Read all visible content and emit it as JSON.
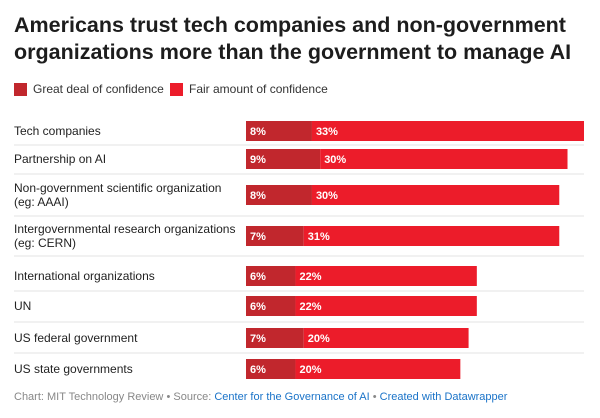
{
  "title": "Americans trust tech companies and non-government organizations more than the government to manage AI",
  "legend": [
    {
      "label": "Great deal of confidence",
      "color": "#c1272d"
    },
    {
      "label": "Fair amount of confidence",
      "color": "#ec1c2a"
    }
  ],
  "chart_data": {
    "type": "bar",
    "orientation": "horizontal",
    "stacked": true,
    "title": "Americans trust tech companies and non-government organizations more than the government to manage AI",
    "categories": [
      [
        "Tech companies"
      ],
      [
        "Partnership on AI"
      ],
      [
        "Non-government scientific organization",
        "(eg: AAAI)"
      ],
      [
        "Intergovernmental research organizations",
        "(eg: CERN)"
      ],
      [
        "International organizations"
      ],
      [
        "UN"
      ],
      [
        "US federal government"
      ],
      [
        "US state governments"
      ]
    ],
    "series": [
      {
        "name": "Great deal of confidence",
        "color": "#c1272d",
        "values": [
          8,
          9,
          8,
          7,
          6,
          6,
          7,
          6
        ],
        "value_labels": [
          "8%",
          "9%",
          "8%",
          "7%",
          "6%",
          "6%",
          "7%",
          "6%"
        ]
      },
      {
        "name": "Fair amount of confidence",
        "color": "#ec1c2a",
        "values": [
          33,
          30,
          30,
          31,
          22,
          22,
          20,
          20
        ],
        "value_labels": [
          "33%",
          "30%",
          "30%",
          "31%",
          "22%",
          "22%",
          "20%",
          "20%"
        ]
      }
    ],
    "xlim": [
      0,
      41
    ],
    "xlabel": "",
    "ylabel": "",
    "grid": false,
    "legend_position": "top-left"
  },
  "footer": {
    "chart_credit": "Chart: MIT Technology Review",
    "separator": "•",
    "source_prefix": "Source:",
    "source_link": "Center for the Governance of AI",
    "created_with": "Created with Datawrapper"
  }
}
